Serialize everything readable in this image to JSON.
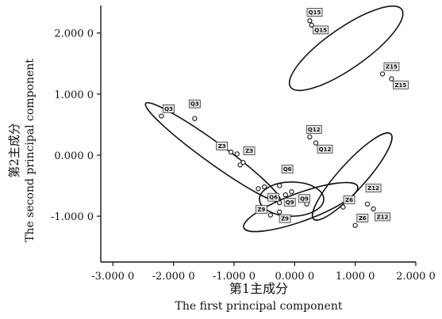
{
  "chart_data": {
    "type": "scatter",
    "xlabel_cn": "第1主成分",
    "xlabel_en": "The first principal component",
    "ylabel_cn": "第2主成分",
    "ylabel_en": "The second principal component",
    "xlim": [
      -3.2,
      2.0
    ],
    "ylim": [
      -1.75,
      2.45
    ],
    "xticks": [
      {
        "value": -3.0,
        "label": "-3.000 0"
      },
      {
        "value": -2.0,
        "label": "-2.000 0"
      },
      {
        "value": -1.0,
        "label": "-1.000 0"
      },
      {
        "value": 0.0,
        "label": "0.000 0"
      },
      {
        "value": 1.0,
        "label": "1.000 0"
      },
      {
        "value": 2.0,
        "label": "2.000 0"
      }
    ],
    "yticks": [
      {
        "value": 2.0,
        "label": "2.000 0"
      },
      {
        "value": 1.0,
        "label": "1.000 0"
      },
      {
        "value": 0.0,
        "label": "0.000 0"
      },
      {
        "value": -1.0,
        "label": "-1.000 0"
      }
    ],
    "points": [
      {
        "x": 0.25,
        "y": 2.2
      },
      {
        "x": 0.28,
        "y": 2.13
      },
      {
        "x": 1.45,
        "y": 1.33
      },
      {
        "x": 1.6,
        "y": 1.25
      },
      {
        "x": -2.2,
        "y": 0.64
      },
      {
        "x": -1.65,
        "y": 0.6
      },
      {
        "x": -1.05,
        "y": 0.05
      },
      {
        "x": -0.95,
        "y": 0.02
      },
      {
        "x": -0.85,
        "y": -0.12
      },
      {
        "x": -0.9,
        "y": -0.16
      },
      {
        "x": -0.6,
        "y": -0.55
      },
      {
        "x": -0.5,
        "y": -0.52
      },
      {
        "x": 0.25,
        "y": 0.3
      },
      {
        "x": 0.35,
        "y": 0.2
      },
      {
        "x": -0.25,
        "y": -0.5
      },
      {
        "x": -0.05,
        "y": -0.6
      },
      {
        "x": -0.15,
        "y": -0.65
      },
      {
        "x": -0.25,
        "y": -0.78
      },
      {
        "x": -0.35,
        "y": -0.7
      },
      {
        "x": 0.2,
        "y": -0.8
      },
      {
        "x": -0.4,
        "y": -0.98
      },
      {
        "x": -0.25,
        "y": -0.93
      },
      {
        "x": 0.8,
        "y": -0.85
      },
      {
        "x": 1.0,
        "y": -1.15
      },
      {
        "x": 1.2,
        "y": -0.8
      },
      {
        "x": 1.3,
        "y": -0.88
      }
    ],
    "point_labels": [
      {
        "text": "Q15",
        "x": 0.33,
        "y": 2.34
      },
      {
        "text": "Q15",
        "x": 0.43,
        "y": 2.05
      },
      {
        "text": "Z15",
        "x": 1.6,
        "y": 1.45
      },
      {
        "text": "Z15",
        "x": 1.75,
        "y": 1.15
      },
      {
        "text": "Q3",
        "x": -2.08,
        "y": 0.76
      },
      {
        "text": "Q3",
        "x": -1.65,
        "y": 0.84
      },
      {
        "text": "Z3",
        "x": -1.2,
        "y": 0.15
      },
      {
        "text": "Z3",
        "x": -0.75,
        "y": 0.07
      },
      {
        "text": "Q12",
        "x": 0.32,
        "y": 0.42
      },
      {
        "text": "Q12",
        "x": 0.5,
        "y": 0.1
      },
      {
        "text": "Q6",
        "x": -0.12,
        "y": -0.23
      },
      {
        "text": "Z6",
        "x": 0.9,
        "y": -0.73
      },
      {
        "text": "Z6",
        "x": 1.12,
        "y": -1.03
      },
      {
        "text": "Z12",
        "x": 1.3,
        "y": -0.54
      },
      {
        "text": "Z12",
        "x": 1.45,
        "y": -1.01
      },
      {
        "text": "Q6",
        "x": -0.35,
        "y": -0.69
      },
      {
        "text": "Q9",
        "x": -0.08,
        "y": -0.77
      },
      {
        "text": "Q9",
        "x": 0.16,
        "y": -0.71
      },
      {
        "text": "Z9",
        "x": -0.55,
        "y": -0.89
      },
      {
        "text": "Z9",
        "x": -0.16,
        "y": -1.04
      }
    ],
    "ellipses": [
      {
        "cx": 0.85,
        "cy": 1.75,
        "rx": 1.12,
        "ry": 0.33,
        "angle": -35
      },
      {
        "cx": -1.35,
        "cy": 0.05,
        "rx": 1.37,
        "ry": 0.17,
        "angle": 36
      },
      {
        "cx": 0.95,
        "cy": -0.35,
        "rx": 0.95,
        "ry": 0.22,
        "angle": -48
      },
      {
        "cx": -0.05,
        "cy": -0.72,
        "rx": 0.53,
        "ry": 0.28,
        "angle": 0
      },
      {
        "cx": 0.1,
        "cy": -0.85,
        "rx": 1.0,
        "ry": 0.23,
        "angle": -20
      }
    ],
    "grid": false,
    "legend": "none"
  }
}
